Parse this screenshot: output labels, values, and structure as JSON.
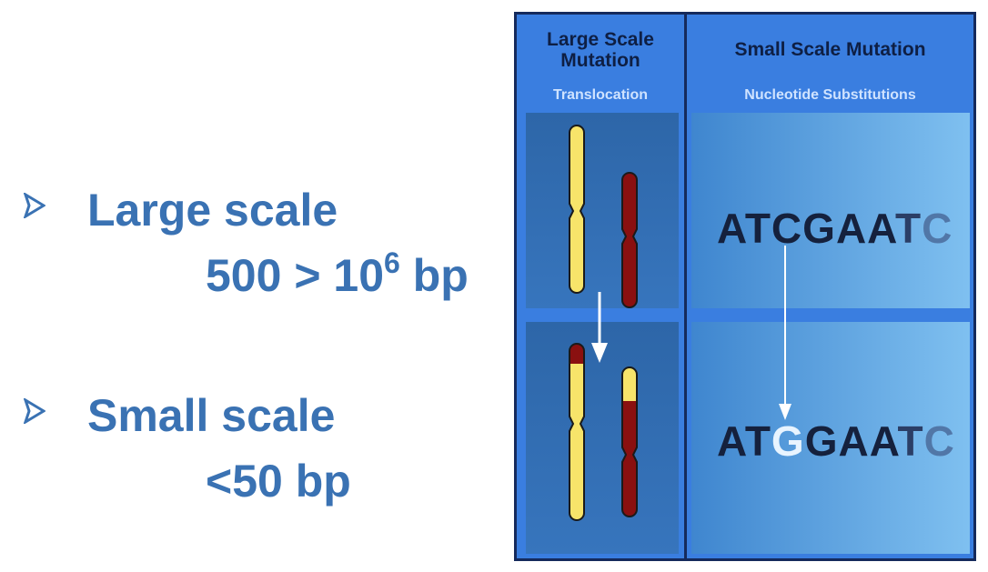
{
  "bullets": [
    {
      "icon": "arrowhead-bullet-icon",
      "title": "Large scale",
      "value_base": "500 > 10",
      "value_exp": "6",
      "value_unit": " bp"
    },
    {
      "icon": "arrowhead-bullet-icon",
      "title": "Small scale",
      "value": "<50 bp"
    }
  ],
  "diagram": {
    "left_column": {
      "title_line1": "Large Scale",
      "title_line2": "Mutation",
      "subtitle": "Translocation"
    },
    "right_column": {
      "title": "Small Scale Mutation",
      "subtitle": "Nucleotide Substitutions"
    },
    "sequence_before": [
      "A",
      "T",
      "C",
      "G",
      "A",
      "A",
      "T",
      "C"
    ],
    "sequence_after": [
      "A",
      "T",
      "G",
      "G",
      "A",
      "A",
      "T",
      "C"
    ],
    "substituted_index": 2
  },
  "colors": {
    "bullet_text": "#3a72b3",
    "diagram_background": "#3a7ee0",
    "diagram_border": "#152a5c",
    "chromosome_yellow": "#f7e46a",
    "chromosome_red": "#8a1010"
  }
}
